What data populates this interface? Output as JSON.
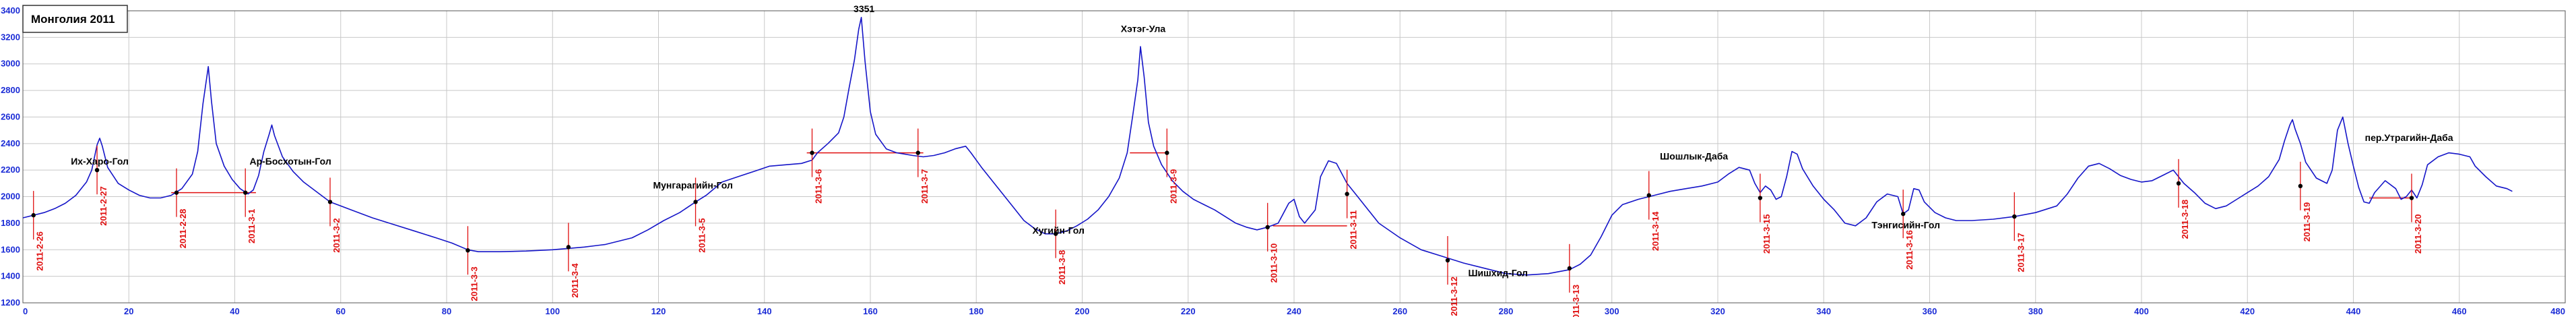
{
  "chart_data": {
    "type": "line",
    "title": "Монголия 2011",
    "xlabel": "",
    "ylabel": "",
    "xlim": [
      0,
      480
    ],
    "ylim": [
      1200,
      3400
    ],
    "xticks": [
      0,
      20,
      40,
      60,
      80,
      100,
      120,
      140,
      160,
      180,
      200,
      220,
      240,
      260,
      280,
      300,
      320,
      340,
      360,
      380,
      400,
      420,
      440,
      460,
      480
    ],
    "yticks": [
      1200,
      1400,
      1600,
      1800,
      2000,
      2200,
      2400,
      2600,
      2800,
      3000,
      3200,
      3400
    ],
    "grid": true,
    "colors": {
      "line": "#1515c8",
      "grid": "#c8c8c8",
      "ticks": "#1a2bd6",
      "dates": "#e01010",
      "markers": "#000000"
    },
    "series": [
      {
        "values": [
          [
            0,
            1840
          ],
          [
            2,
            1860
          ],
          [
            4,
            1880
          ],
          [
            6,
            1910
          ],
          [
            8,
            1950
          ],
          [
            10,
            2010
          ],
          [
            12,
            2110
          ],
          [
            13,
            2200
          ],
          [
            14,
            2390
          ],
          [
            14.5,
            2440
          ],
          [
            15,
            2380
          ],
          [
            16,
            2220
          ],
          [
            18,
            2100
          ],
          [
            20,
            2050
          ],
          [
            22,
            2010
          ],
          [
            24,
            1990
          ],
          [
            26,
            1990
          ],
          [
            28,
            2010
          ],
          [
            30,
            2060
          ],
          [
            32,
            2170
          ],
          [
            33,
            2340
          ],
          [
            34,
            2700
          ],
          [
            35,
            2980
          ],
          [
            35.6,
            2720
          ],
          [
            36.5,
            2400
          ],
          [
            38,
            2230
          ],
          [
            39.5,
            2130
          ],
          [
            41,
            2060
          ],
          [
            42.5,
            2020
          ],
          [
            43.5,
            2050
          ],
          [
            44.5,
            2160
          ],
          [
            45.5,
            2340
          ],
          [
            46.5,
            2470
          ],
          [
            47,
            2540
          ],
          [
            47.5,
            2460
          ],
          [
            49,
            2300
          ],
          [
            51,
            2190
          ],
          [
            53,
            2110
          ],
          [
            56,
            2020
          ],
          [
            58,
            1960
          ],
          [
            62,
            1900
          ],
          [
            66,
            1840
          ],
          [
            70,
            1790
          ],
          [
            74,
            1740
          ],
          [
            78,
            1690
          ],
          [
            81,
            1650
          ],
          [
            84,
            1600
          ],
          [
            86,
            1585
          ],
          [
            90,
            1585
          ],
          [
            95,
            1590
          ],
          [
            100,
            1600
          ],
          [
            103,
            1610
          ],
          [
            106,
            1620
          ],
          [
            110,
            1640
          ],
          [
            115,
            1690
          ],
          [
            118,
            1750
          ],
          [
            121,
            1820
          ],
          [
            124,
            1880
          ],
          [
            127,
            1960
          ],
          [
            129,
            2010
          ],
          [
            132,
            2110
          ],
          [
            135,
            2150
          ],
          [
            138,
            2190
          ],
          [
            141,
            2230
          ],
          [
            144,
            2240
          ],
          [
            147,
            2250
          ],
          [
            149,
            2275
          ],
          [
            150,
            2330
          ],
          [
            152,
            2400
          ],
          [
            154,
            2480
          ],
          [
            155,
            2600
          ],
          [
            156,
            2820
          ],
          [
            157,
            3030
          ],
          [
            157.8,
            3260
          ],
          [
            158.3,
            3350
          ],
          [
            159,
            3020
          ],
          [
            160,
            2640
          ],
          [
            161,
            2470
          ],
          [
            163,
            2360
          ],
          [
            165,
            2330
          ],
          [
            168,
            2310
          ],
          [
            170,
            2300
          ],
          [
            172,
            2310
          ],
          [
            174,
            2330
          ],
          [
            176,
            2360
          ],
          [
            178,
            2380
          ],
          [
            179,
            2330
          ],
          [
            181,
            2220
          ],
          [
            183,
            2120
          ],
          [
            185,
            2020
          ],
          [
            187,
            1920
          ],
          [
            189,
            1820
          ],
          [
            191,
            1760
          ],
          [
            193,
            1720
          ],
          [
            195,
            1720
          ],
          [
            197,
            1740
          ],
          [
            199,
            1780
          ],
          [
            201,
            1830
          ],
          [
            203,
            1900
          ],
          [
            205,
            2000
          ],
          [
            207,
            2140
          ],
          [
            208.5,
            2330
          ],
          [
            209.5,
            2600
          ],
          [
            210.5,
            2880
          ],
          [
            211,
            3130
          ],
          [
            211.7,
            2900
          ],
          [
            212.5,
            2560
          ],
          [
            213.5,
            2380
          ],
          [
            215,
            2240
          ],
          [
            217,
            2120
          ],
          [
            219,
            2040
          ],
          [
            221,
            1980
          ],
          [
            223,
            1940
          ],
          [
            225,
            1900
          ],
          [
            227,
            1850
          ],
          [
            229,
            1800
          ],
          [
            231,
            1770
          ],
          [
            233,
            1750
          ],
          [
            235,
            1770
          ],
          [
            237,
            1800
          ],
          [
            239,
            1950
          ],
          [
            240,
            1980
          ],
          [
            241,
            1850
          ],
          [
            242,
            1800
          ],
          [
            244,
            1900
          ],
          [
            245,
            2150
          ],
          [
            246.5,
            2270
          ],
          [
            248,
            2250
          ],
          [
            250,
            2100
          ],
          [
            252,
            2000
          ],
          [
            254,
            1900
          ],
          [
            256,
            1800
          ],
          [
            260,
            1690
          ],
          [
            264,
            1600
          ],
          [
            268,
            1550
          ],
          [
            272,
            1500
          ],
          [
            276,
            1460
          ],
          [
            280,
            1420
          ],
          [
            284,
            1410
          ],
          [
            288,
            1420
          ],
          [
            292,
            1450
          ],
          [
            294,
            1490
          ],
          [
            296,
            1560
          ],
          [
            298,
            1700
          ],
          [
            300,
            1860
          ],
          [
            302,
            1940
          ],
          [
            305,
            1980
          ],
          [
            308,
            2010
          ],
          [
            311,
            2040
          ],
          [
            314,
            2060
          ],
          [
            317,
            2080
          ],
          [
            320,
            2110
          ],
          [
            322,
            2170
          ],
          [
            324,
            2220
          ],
          [
            326,
            2200
          ],
          [
            327,
            2100
          ],
          [
            328,
            2030
          ],
          [
            329,
            2080
          ],
          [
            330,
            2050
          ],
          [
            331,
            1980
          ],
          [
            332,
            2000
          ],
          [
            333,
            2150
          ],
          [
            334,
            2340
          ],
          [
            335,
            2320
          ],
          [
            336,
            2210
          ],
          [
            338,
            2080
          ],
          [
            340,
            1980
          ],
          [
            342,
            1900
          ],
          [
            344,
            1800
          ],
          [
            346,
            1780
          ],
          [
            348,
            1840
          ],
          [
            350,
            1960
          ],
          [
            352,
            2020
          ],
          [
            354,
            2000
          ],
          [
            355,
            1870
          ],
          [
            356,
            1900
          ],
          [
            357,
            2060
          ],
          [
            358,
            2050
          ],
          [
            359,
            1960
          ],
          [
            361,
            1880
          ],
          [
            363,
            1840
          ],
          [
            365,
            1820
          ],
          [
            368,
            1820
          ],
          [
            372,
            1830
          ],
          [
            376,
            1850
          ],
          [
            380,
            1880
          ],
          [
            384,
            1930
          ],
          [
            386,
            2020
          ],
          [
            388,
            2140
          ],
          [
            390,
            2230
          ],
          [
            392,
            2250
          ],
          [
            394,
            2210
          ],
          [
            396,
            2160
          ],
          [
            398,
            2130
          ],
          [
            400,
            2110
          ],
          [
            402,
            2120
          ],
          [
            404,
            2160
          ],
          [
            406,
            2200
          ],
          [
            408,
            2100
          ],
          [
            410,
            2030
          ],
          [
            412,
            1950
          ],
          [
            414,
            1910
          ],
          [
            416,
            1930
          ],
          [
            418,
            1980
          ],
          [
            420,
            2030
          ],
          [
            422,
            2080
          ],
          [
            424,
            2150
          ],
          [
            426,
            2280
          ],
          [
            427,
            2420
          ],
          [
            428,
            2540
          ],
          [
            428.5,
            2580
          ],
          [
            429,
            2510
          ],
          [
            430,
            2400
          ],
          [
            431,
            2260
          ],
          [
            433,
            2140
          ],
          [
            435,
            2100
          ],
          [
            436,
            2200
          ],
          [
            437,
            2500
          ],
          [
            438,
            2600
          ],
          [
            439,
            2400
          ],
          [
            440,
            2230
          ],
          [
            441,
            2070
          ],
          [
            442,
            1960
          ],
          [
            443,
            1950
          ],
          [
            444,
            2030
          ],
          [
            446,
            2120
          ],
          [
            448,
            2060
          ],
          [
            449,
            1980
          ],
          [
            450,
            2000
          ],
          [
            451,
            2050
          ],
          [
            452,
            1990
          ],
          [
            453,
            2090
          ],
          [
            454,
            2240
          ],
          [
            456,
            2300
          ],
          [
            458,
            2330
          ],
          [
            460,
            2320
          ],
          [
            462,
            2300
          ],
          [
            463,
            2230
          ],
          [
            465,
            2150
          ],
          [
            467,
            2080
          ],
          [
            469,
            2060
          ],
          [
            470,
            2040
          ]
        ]
      }
    ],
    "annotations": [
      {
        "x": 14,
        "y": 2200,
        "text": "Их-Харо-Гол"
      },
      {
        "x": 50,
        "y": 2200,
        "text": "Ар-Босхотын-Гол"
      },
      {
        "x": 158.3,
        "y": 3350,
        "text": "3351"
      },
      {
        "x": 126,
        "y": 2020,
        "text": "Мунгарагийн-Гол"
      },
      {
        "x": 195,
        "y": 1680,
        "text": "Хугийн-Гол"
      },
      {
        "x": 211,
        "y": 3200,
        "text": "Хэтэг-Ула"
      },
      {
        "x": 278,
        "y": 1360,
        "text": "Шишхид-Гол"
      },
      {
        "x": 315,
        "y": 2240,
        "text": "Шошлык-Даба"
      },
      {
        "x": 355,
        "y": 1720,
        "text": "Тэнгисийн-Гол"
      },
      {
        "x": 450,
        "y": 2380,
        "text": "пер.Утрагийн-Даба"
      }
    ],
    "day_markers": [
      {
        "x": 2,
        "y": 1860,
        "date": "2011-2-26"
      },
      {
        "x": 14,
        "y": 2200,
        "date": "2011-2-27"
      },
      {
        "x": 29,
        "y": 2030,
        "date": "2011-2-28"
      },
      {
        "x": 42,
        "y": 2030,
        "date": "2011-3-1"
      },
      {
        "x": 58,
        "y": 1960,
        "date": "2011-3-2"
      },
      {
        "x": 84,
        "y": 1595,
        "date": "2011-3-3"
      },
      {
        "x": 103,
        "y": 1620,
        "date": "2011-3-4"
      },
      {
        "x": 127,
        "y": 1960,
        "date": "2011-3-5"
      },
      {
        "x": 149,
        "y": 2330,
        "date": "2011-3-6"
      },
      {
        "x": 169,
        "y": 2330,
        "date": "2011-3-7"
      },
      {
        "x": 195,
        "y": 1720,
        "date": "2011-3-8"
      },
      {
        "x": 216,
        "y": 2330,
        "date": "2011-3-9"
      },
      {
        "x": 235,
        "y": 1770,
        "date": "2011-3-10"
      },
      {
        "x": 250,
        "y": 2020,
        "date": "2011-3-11"
      },
      {
        "x": 269,
        "y": 1520,
        "date": "2011-3-12"
      },
      {
        "x": 292,
        "y": 1460,
        "date": "2011-3-13"
      },
      {
        "x": 307,
        "y": 2010,
        "date": "2011-3-14"
      },
      {
        "x": 328,
        "y": 1990,
        "date": "2011-3-15"
      },
      {
        "x": 355,
        "y": 1870,
        "date": "2011-3-16"
      },
      {
        "x": 376,
        "y": 1850,
        "date": "2011-3-17"
      },
      {
        "x": 407,
        "y": 2100,
        "date": "2011-3-18"
      },
      {
        "x": 430,
        "y": 2080,
        "date": "2011-3-19"
      },
      {
        "x": 451,
        "y": 1990,
        "date": "2011-3-20"
      }
    ],
    "red_segments": [
      {
        "x1": 28,
        "x2": 44,
        "y": 2030
      },
      {
        "x1": 148,
        "x2": 170,
        "y": 2330
      },
      {
        "x1": 209,
        "x2": 216,
        "y": 2330
      },
      {
        "x1": 236,
        "x2": 250,
        "y": 1780
      },
      {
        "x1": 443,
        "x2": 451,
        "y": 1990
      }
    ]
  }
}
